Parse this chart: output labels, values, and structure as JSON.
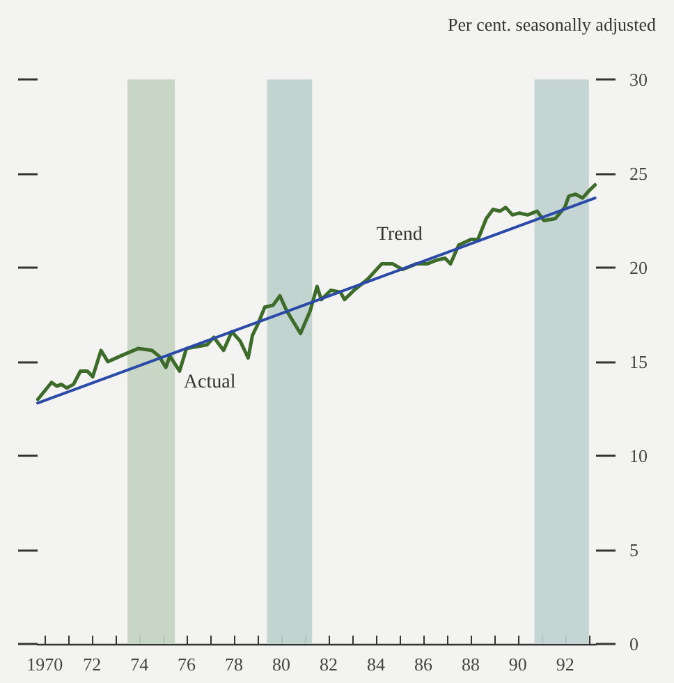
{
  "chart_data": {
    "type": "line",
    "ylabel": "Per cent. seasonally adjusted",
    "xlim": [
      1969.7,
      1993.3
    ],
    "xticks": [
      {
        "value": 1970,
        "label": "1970"
      },
      {
        "value": 1971,
        "label": null
      },
      {
        "value": 1972,
        "label": "72"
      },
      {
        "value": 1973,
        "label": null
      },
      {
        "value": 1974,
        "label": "74"
      },
      {
        "value": 1975,
        "label": null
      },
      {
        "value": 1976,
        "label": "76"
      },
      {
        "value": 1977,
        "label": null
      },
      {
        "value": 1978,
        "label": "78"
      },
      {
        "value": 1979,
        "label": null
      },
      {
        "value": 1980,
        "label": "80"
      },
      {
        "value": 1981,
        "label": null
      },
      {
        "value": 1982,
        "label": "82"
      },
      {
        "value": 1983,
        "label": null
      },
      {
        "value": 1984,
        "label": "84"
      },
      {
        "value": 1985,
        "label": null
      },
      {
        "value": 1986,
        "label": "86"
      },
      {
        "value": 1987,
        "label": null
      },
      {
        "value": 1988,
        "label": "88"
      },
      {
        "value": 1989,
        "label": null
      },
      {
        "value": 1990,
        "label": "90"
      },
      {
        "value": 1991,
        "label": null
      },
      {
        "value": 1992,
        "label": "92"
      },
      {
        "value": 1993,
        "label": null
      }
    ],
    "ylim": [
      0,
      30
    ],
    "yticks": [
      0,
      5,
      10,
      15,
      20,
      25,
      30
    ],
    "grid": false,
    "legend": false,
    "marker": "none",
    "line_style": "solid",
    "series": [
      {
        "name": "Actual",
        "color": "#3d6b2a",
        "x": [
          1969.71,
          1970.29,
          1970.52,
          1970.7,
          1970.93,
          1971.22,
          1971.51,
          1971.8,
          1972.03,
          1972.38,
          1972.67,
          1973.2,
          1973.95,
          1974.53,
          1974.83,
          1975.12,
          1975.29,
          1975.7,
          1975.99,
          1976.45,
          1976.86,
          1977.15,
          1977.56,
          1977.91,
          1978.26,
          1978.6,
          1978.78,
          1979.01,
          1979.3,
          1979.65,
          1979.94,
          1980.23,
          1980.81,
          1981.22,
          1981.51,
          1981.69,
          1982.09,
          1982.5,
          1982.67,
          1983.08,
          1983.66,
          1984.24,
          1984.71,
          1985.12,
          1985.7,
          1986.16,
          1986.57,
          1986.92,
          1987.15,
          1987.5,
          1988.02,
          1988.31,
          1988.66,
          1988.95,
          1989.24,
          1989.48,
          1989.77,
          1990.06,
          1990.41,
          1990.81,
          1991.1,
          1991.57,
          1991.98,
          1992.15,
          1992.44,
          1992.73,
          1993.02,
          1993.26
        ],
        "values": [
          13.0,
          13.9,
          13.7,
          13.8,
          13.6,
          13.8,
          14.5,
          14.5,
          14.2,
          15.6,
          15.0,
          15.3,
          15.7,
          15.6,
          15.3,
          14.7,
          15.3,
          14.5,
          15.7,
          15.8,
          15.9,
          16.3,
          15.6,
          16.6,
          16.1,
          15.2,
          16.4,
          17.0,
          17.9,
          18.0,
          18.5,
          17.7,
          16.5,
          17.7,
          19.0,
          18.3,
          18.8,
          18.7,
          18.3,
          18.8,
          19.4,
          20.2,
          20.2,
          19.9,
          20.2,
          20.2,
          20.4,
          20.5,
          20.2,
          21.2,
          21.5,
          21.5,
          22.6,
          23.1,
          23.0,
          23.2,
          22.8,
          22.9,
          22.8,
          23.0,
          22.5,
          22.6,
          23.2,
          23.8,
          23.9,
          23.7,
          24.1,
          24.4
        ]
      },
      {
        "name": "Trend",
        "color": "#2b4aa8",
        "x": [
          1969.7,
          1985.7,
          1993.26
        ],
        "values": [
          12.8,
          20.2,
          23.7
        ]
      }
    ],
    "bands": [
      {
        "axis": "x",
        "from": 1973.5,
        "to": 1975.5,
        "color": "#c2d3c0"
      },
      {
        "axis": "x",
        "from": 1979.4,
        "to": 1981.3,
        "color": "#bcd0cc"
      },
      {
        "axis": "x",
        "from": 1990.7,
        "to": 1993.0,
        "color": "#bfd2cf"
      }
    ]
  }
}
